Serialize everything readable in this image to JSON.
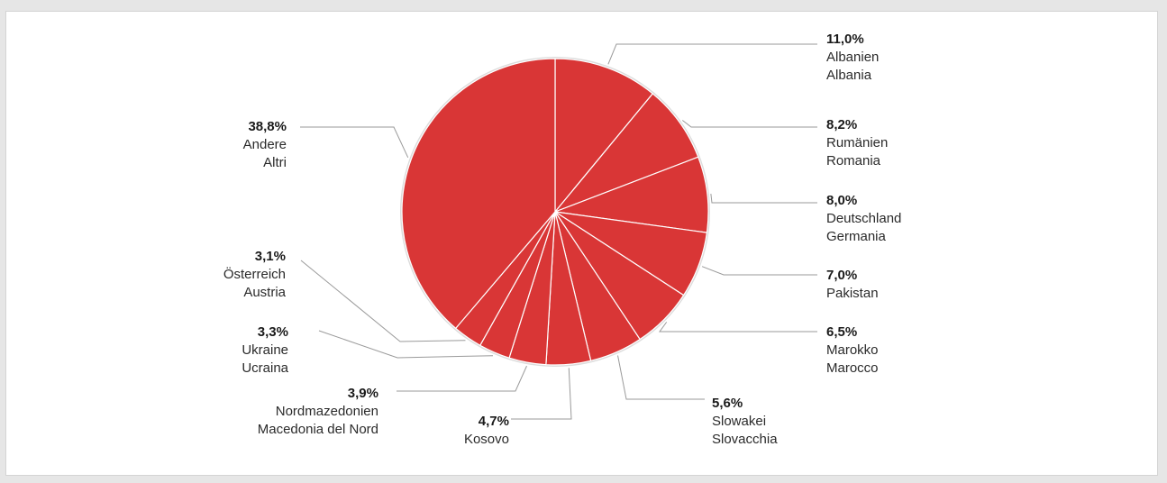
{
  "chart_data": {
    "type": "pie",
    "slices": [
      {
        "value": 11.0,
        "label_pct": "11,0%",
        "name_de": "Albanien",
        "name_it": "Albania"
      },
      {
        "value": 8.2,
        "label_pct": "8,2%",
        "name_de": "Rumänien",
        "name_it": "Romania"
      },
      {
        "value": 8.0,
        "label_pct": "8,0%",
        "name_de": "Deutschland",
        "name_it": "Germania"
      },
      {
        "value": 7.0,
        "label_pct": "7,0%",
        "name_de": "Pakistan",
        "name_it": ""
      },
      {
        "value": 6.5,
        "label_pct": "6,5%",
        "name_de": "Marokko",
        "name_it": "Marocco"
      },
      {
        "value": 5.6,
        "label_pct": "5,6%",
        "name_de": "Slowakei",
        "name_it": "Slovacchia"
      },
      {
        "value": 4.7,
        "label_pct": "4,7%",
        "name_de": "Kosovo",
        "name_it": ""
      },
      {
        "value": 3.9,
        "label_pct": "3,9%",
        "name_de": "Nordmazedonien",
        "name_it": "Macedonia del Nord"
      },
      {
        "value": 3.3,
        "label_pct": "3,3%",
        "name_de": "Ukraine",
        "name_it": "Ucraina"
      },
      {
        "value": 3.1,
        "label_pct": "3,1%",
        "name_de": "Österreich",
        "name_it": "Austria"
      },
      {
        "value": 38.8,
        "label_pct": "38,8%",
        "name_de": "Andere",
        "name_it": "Altri"
      }
    ],
    "colors": {
      "slice": "#d93636",
      "separator": "#ffffff",
      "rim": "#dcdcdc",
      "leader": "#9a9a9a"
    }
  }
}
